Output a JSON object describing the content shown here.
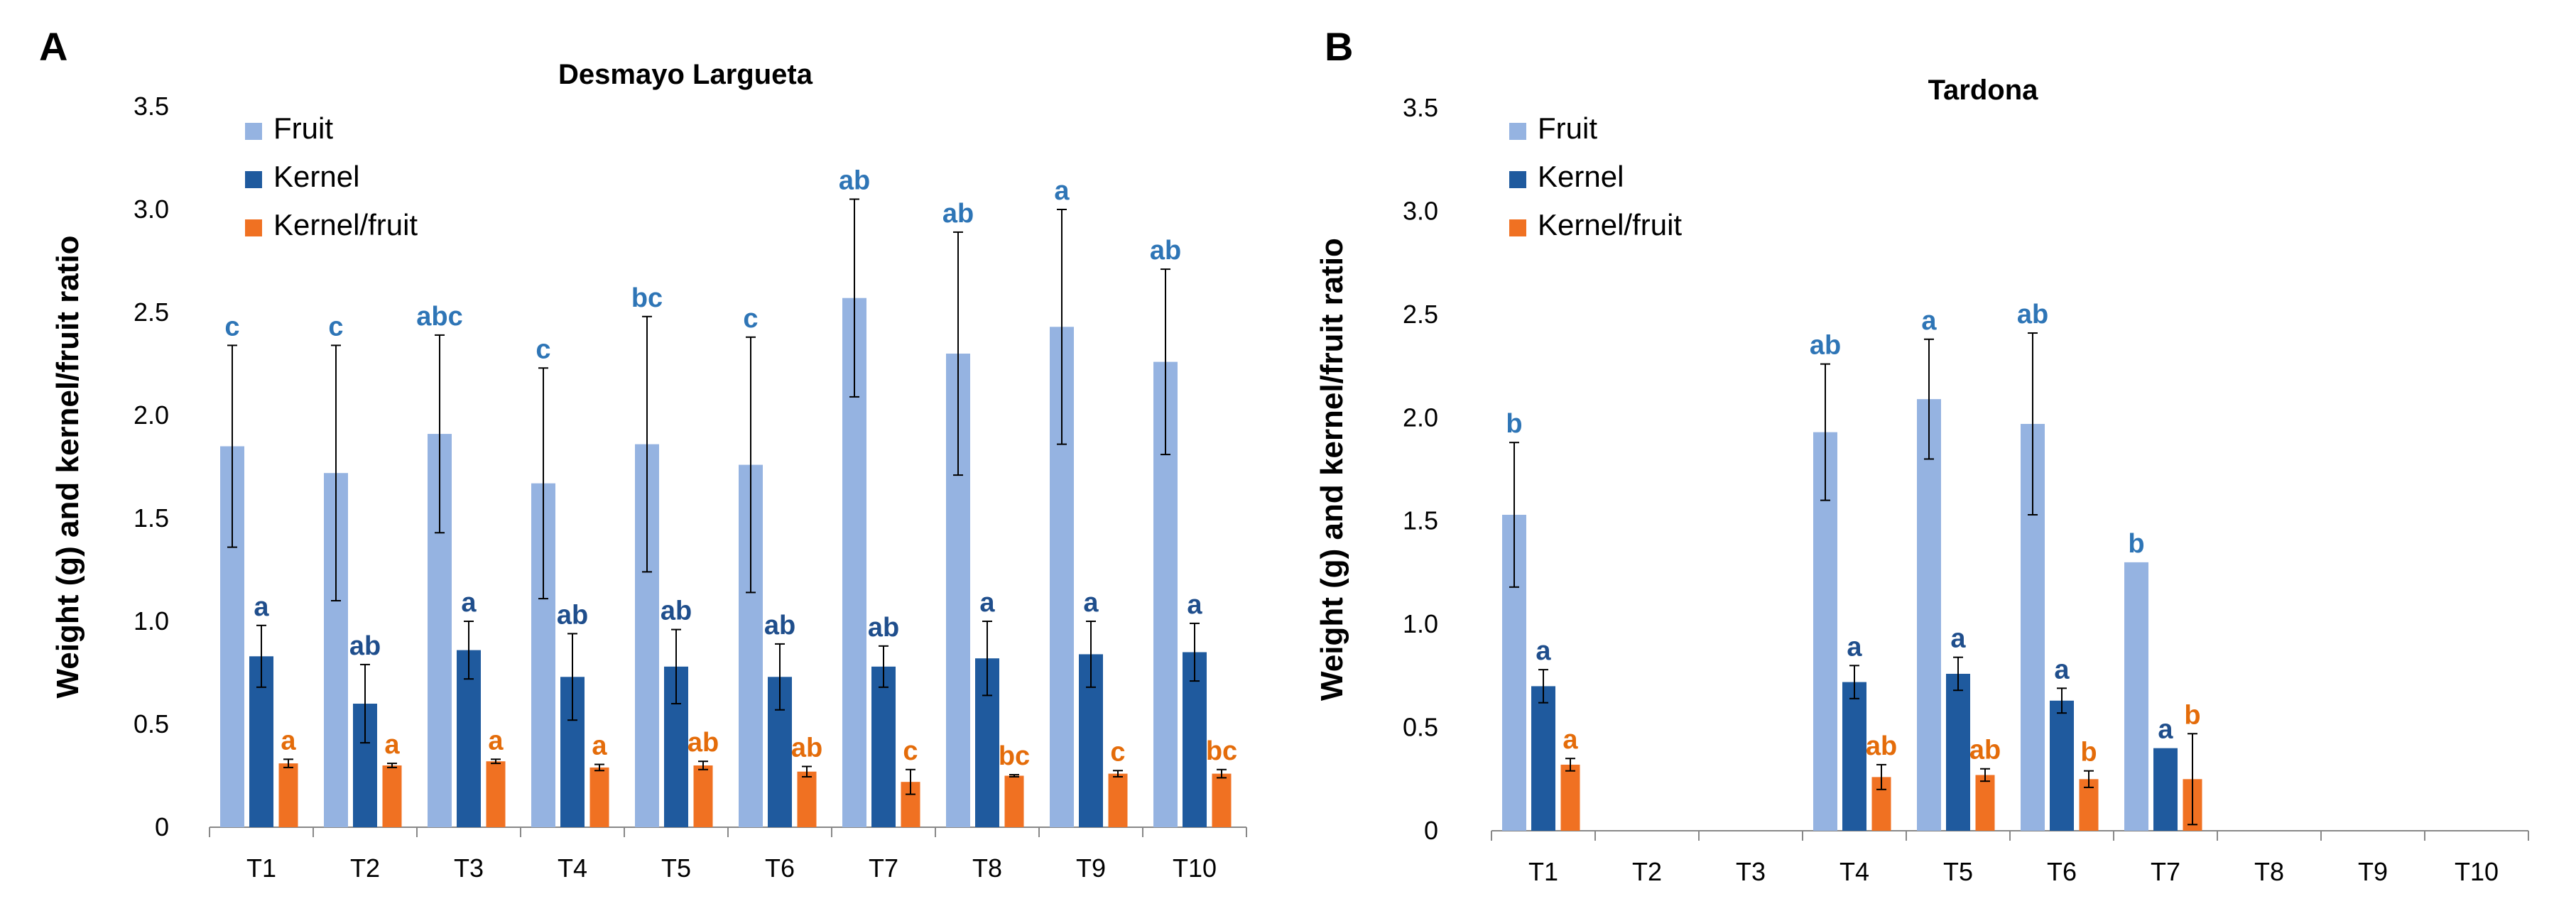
{
  "panels": [
    {
      "letter": "A"
    },
    {
      "letter": "B"
    }
  ],
  "colors": {
    "fruit": "#95B3E1",
    "kernel": "#1F5A9E",
    "ratio": "#F07122",
    "fruit_letter": "#2E75B6",
    "kernel_letter": "#1F4E8C",
    "ratio_letter": "#E46C0A"
  },
  "chart_data": [
    {
      "type": "bar",
      "title": "Desmayo Largueta",
      "ylabel": "Weight (g) and kernel/fruit ratio",
      "xlabel": "",
      "ylim": [
        0,
        3.5
      ],
      "yticks": [
        "0",
        "0.5",
        "1.0",
        "1.5",
        "2.0",
        "2.5",
        "3.0",
        "3.5"
      ],
      "categories": [
        "T1",
        "T2",
        "T3",
        "T4",
        "T5",
        "T6",
        "T7",
        "T8",
        "T9",
        "T10"
      ],
      "legend": {
        "position": "top-left"
      },
      "series": [
        {
          "name": "Fruit",
          "color": "#95B3E1",
          "letter_color": "#2E75B6",
          "values": [
            1.85,
            1.72,
            1.91,
            1.67,
            1.86,
            1.76,
            2.57,
            2.3,
            2.43,
            2.26
          ],
          "errors": [
            0.49,
            0.62,
            0.48,
            0.56,
            0.62,
            0.62,
            0.48,
            0.59,
            0.57,
            0.45
          ],
          "labels": [
            "c",
            "c",
            "abc",
            "c",
            "bc",
            "c",
            "ab",
            "ab",
            "a",
            "ab"
          ]
        },
        {
          "name": "Kernel",
          "color": "#1F5A9E",
          "letter_color": "#1F4E8C",
          "values": [
            0.83,
            0.6,
            0.86,
            0.73,
            0.78,
            0.73,
            0.78,
            0.82,
            0.84,
            0.85
          ],
          "errors": [
            0.15,
            0.19,
            0.14,
            0.21,
            0.18,
            0.16,
            0.1,
            0.18,
            0.16,
            0.14
          ],
          "labels": [
            "a",
            "ab",
            "a",
            "ab",
            "ab",
            "ab",
            "ab",
            "a",
            "a",
            "a"
          ]
        },
        {
          "name": "Kernel/fruit",
          "color": "#F07122",
          "letter_color": "#E46C0A",
          "values": [
            0.31,
            0.3,
            0.32,
            0.29,
            0.3,
            0.27,
            0.22,
            0.25,
            0.26,
            0.26
          ],
          "errors": [
            0.02,
            0.01,
            0.01,
            0.015,
            0.02,
            0.025,
            0.06,
            0.005,
            0.015,
            0.02
          ],
          "labels": [
            "a",
            "a",
            "a",
            "a",
            "ab",
            "ab",
            "c",
            "bc",
            "c",
            "bc"
          ]
        }
      ]
    },
    {
      "type": "bar",
      "title": "Tardona",
      "ylabel": "Weight (g) and kernel/fruit ratio",
      "xlabel": "",
      "ylim": [
        0,
        3.5
      ],
      "yticks": [
        "0",
        "0.5",
        "1.0",
        "1.5",
        "2.0",
        "2.5",
        "3.0",
        "3.5"
      ],
      "categories": [
        "T1",
        "T2",
        "T3",
        "T4",
        "T5",
        "T6",
        "T7",
        "T8",
        "T9",
        "T10"
      ],
      "legend": {
        "position": "top-left"
      },
      "series": [
        {
          "name": "Fruit",
          "color": "#95B3E1",
          "letter_color": "#2E75B6",
          "values": [
            1.53,
            null,
            null,
            1.93,
            2.09,
            1.97,
            1.3,
            null,
            null,
            null
          ],
          "errors": [
            0.35,
            null,
            null,
            0.33,
            0.29,
            0.44,
            0.0,
            null,
            null,
            null
          ],
          "labels": [
            "b",
            "",
            "",
            "ab",
            "a",
            "ab",
            "b",
            "",
            "",
            ""
          ]
        },
        {
          "name": "Kernel",
          "color": "#1F5A9E",
          "letter_color": "#1F4E8C",
          "values": [
            0.7,
            null,
            null,
            0.72,
            0.76,
            0.63,
            0.4,
            null,
            null,
            null
          ],
          "errors": [
            0.08,
            null,
            null,
            0.08,
            0.08,
            0.06,
            0.0,
            null,
            null,
            null
          ],
          "labels": [
            "a",
            "",
            "",
            "a",
            "a",
            "a",
            "a",
            "",
            "",
            ""
          ]
        },
        {
          "name": "Kernel/fruit",
          "color": "#F07122",
          "letter_color": "#E46C0A",
          "values": [
            0.32,
            null,
            null,
            0.26,
            0.27,
            0.25,
            0.25,
            null,
            null,
            null
          ],
          "errors": [
            0.03,
            null,
            null,
            0.06,
            0.03,
            0.04,
            0.22,
            null,
            null,
            null
          ],
          "labels": [
            "a",
            "",
            "",
            "ab",
            "ab",
            "b",
            "b",
            "",
            "",
            ""
          ]
        }
      ]
    }
  ]
}
